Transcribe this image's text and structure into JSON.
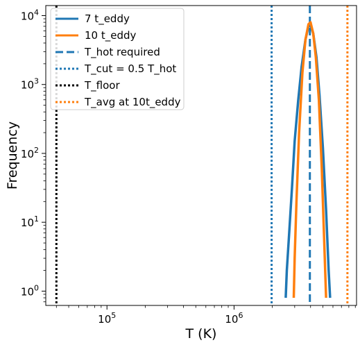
{
  "chart_data": {
    "type": "line",
    "title": "",
    "xlabel": "T (K)",
    "ylabel": "Frequency",
    "xscale": "log",
    "yscale": "log",
    "xlim": [
      33000,
      9200000
    ],
    "ylim": [
      0.62,
      14000
    ],
    "grid": false,
    "legend_position": "top-left",
    "x_ticks": [
      {
        "value": 100000,
        "base": "10",
        "exp": "5"
      },
      {
        "value": 1000000,
        "base": "10",
        "exp": "6"
      }
    ],
    "y_ticks": [
      {
        "value": 1,
        "base": "10",
        "exp": "0"
      },
      {
        "value": 10,
        "base": "10",
        "exp": "1"
      },
      {
        "value": 100,
        "base": "10",
        "exp": "2"
      },
      {
        "value": 1000,
        "base": "10",
        "exp": "3"
      },
      {
        "value": 10000,
        "base": "10",
        "exp": "4"
      }
    ],
    "series": [
      {
        "name": "7 t_eddy",
        "color": "#1f77b4",
        "style": "solid",
        "x": [
          2550000,
          2600000,
          2700000,
          2850000,
          3000000,
          3200000,
          3400000,
          3650000,
          3850000,
          4000000,
          4200000,
          4450000,
          4700000,
          5000000,
          5300000,
          5550000,
          5700000
        ],
        "y": [
          0.8,
          2,
          6,
          30,
          150,
          600,
          1800,
          4500,
          7000,
          7200,
          5500,
          2500,
          700,
          120,
          15,
          2,
          0.8
        ]
      },
      {
        "name": "10 t_eddy",
        "color": "#ff7f0e",
        "style": "solid",
        "x": [
          2950000,
          3000000,
          3100000,
          3250000,
          3450000,
          3650000,
          3850000,
          4000000,
          4200000,
          4400000,
          4650000,
          4900000,
          5150000,
          5300000
        ],
        "y": [
          0.8,
          3,
          20,
          200,
          1500,
          4500,
          7500,
          8000,
          5500,
          2500,
          600,
          60,
          4,
          0.8
        ]
      }
    ],
    "reference_lines": [
      {
        "name": "T_hot required",
        "x": 3950000,
        "color": "#1f77b4",
        "style": "dashed"
      },
      {
        "name": "T_cut = 0.5 T_hot",
        "x": 1975000,
        "color": "#1f77b4",
        "style": "dotted"
      },
      {
        "name": "T_floor",
        "x": 40000,
        "color": "#000000",
        "style": "dotted"
      },
      {
        "name": "T_avg at 10t_eddy",
        "x": 7800000,
        "color": "#ff7f0e",
        "style": "dotted"
      }
    ]
  }
}
